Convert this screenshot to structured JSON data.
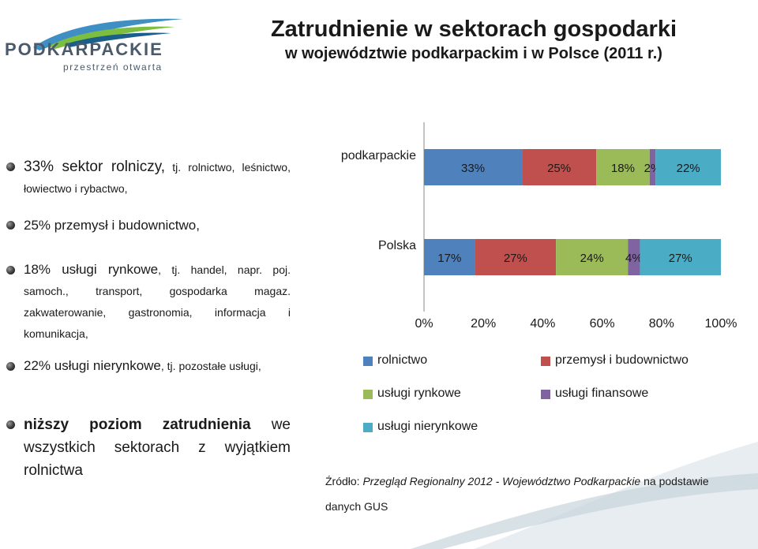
{
  "logo": {
    "name": "PODKARPACKIE",
    "tagline": "przestrzeń otwarta"
  },
  "title": "Zatrudnienie w sektorach gospodarki",
  "subtitle": "w województwie podkarpackim i w Polsce (2011 r.)",
  "bullets": [
    {
      "lead": "33% sektor rolniczy,",
      "rest": " tj. rolnictwo, leśnictwo, łowiectwo i rybactwo,"
    },
    {
      "lead": "25% przemysł i budownictwo,",
      "rest": ""
    },
    {
      "lead": "18% usługi rynkowe",
      "rest": ", tj. handel, napr. poj. samoch., transport, gospodarka magaz. zakwaterowanie, gastronomia, informacja i komunikacja,"
    },
    {
      "lead": "22% usługi nierynkowe",
      "rest": ", tj. pozostałe usługi,"
    },
    {
      "lead": "niższy poziom zatrudnienia",
      "rest": " we wszystkich sektorach z wyjątkiem rolnictwa"
    }
  ],
  "colors": {
    "rolnictwo": "#4f81bd",
    "przemysl": "#c0504d",
    "uslugi_rynkowe": "#9bbb59",
    "uslugi_finansowe": "#8064a2",
    "uslugi_nierynkowe": "#4bacc6"
  },
  "chart_data": {
    "type": "bar",
    "orientation": "horizontal",
    "stacked": "percent",
    "categories": [
      "podkarpackie",
      "Polska"
    ],
    "series": [
      {
        "name": "rolnictwo",
        "values": [
          33,
          17
        ],
        "labels": [
          "33%",
          "17%"
        ]
      },
      {
        "name": "przemysł i budownictwo",
        "values": [
          25,
          27
        ],
        "labels": [
          "25%",
          "27%"
        ]
      },
      {
        "name": "usługi rynkowe",
        "values": [
          18,
          24
        ],
        "labels": [
          "18%",
          "24%"
        ]
      },
      {
        "name": "usługi finansowe",
        "values": [
          2,
          4
        ],
        "labels": [
          "2%",
          "4%"
        ]
      },
      {
        "name": "usługi nierynkowe",
        "values": [
          22,
          27
        ],
        "labels": [
          "22%",
          "27%"
        ]
      }
    ],
    "xlim": [
      0,
      100
    ],
    "xticks": [
      "0%",
      "20%",
      "40%",
      "60%",
      "80%",
      "100%"
    ],
    "grid": false,
    "legend_placement": "bottom"
  },
  "source": {
    "prefix": "Źródło: ",
    "italic": "Przegląd Regionalny 2012 - Województwo Podkarpackie",
    "suffix": " na podstawie danych GUS"
  }
}
